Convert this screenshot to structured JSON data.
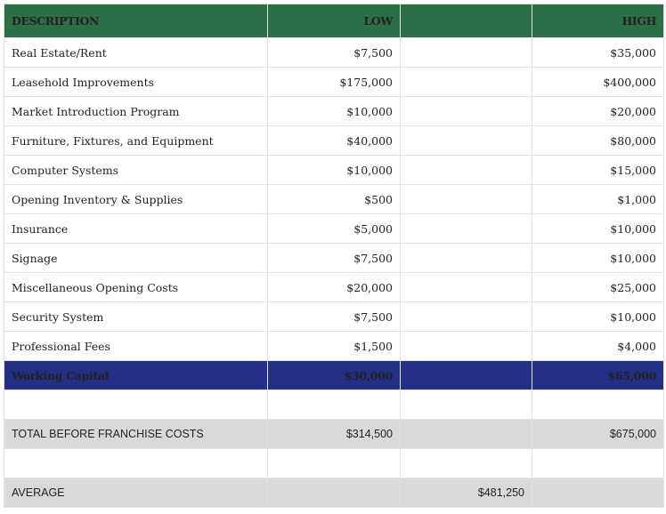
{
  "header": {
    "description": "DESCRIPTION",
    "low": "LOW",
    "middle": "",
    "high": "HIGH"
  },
  "rows": [
    {
      "description": "Real Estate/Rent",
      "low": "$7,500",
      "high": "$35,000"
    },
    {
      "description": "Leasehold Improvements",
      "low": "$175,000",
      "high": "$400,000"
    },
    {
      "description": "Market Introduction Program",
      "low": "$10,000",
      "high": "$20,000"
    },
    {
      "description": "Furniture, Fixtures, and Equipment",
      "low": "$40,000",
      "high": "$80,000"
    },
    {
      "description": "Computer Systems",
      "low": "$10,000",
      "high": "$15,000"
    },
    {
      "description": "Opening Inventory & Supplies",
      "low": "$500",
      "high": "$1,000"
    },
    {
      "description": "Insurance",
      "low": "$5,000",
      "high": "$10,000"
    },
    {
      "description": "Signage",
      "low": "$7,500",
      "high": "$10,000"
    },
    {
      "description": "Miscellaneous Opening Costs",
      "low": "$20,000",
      "high": "$25,000"
    },
    {
      "description": "Security System",
      "low": "$7,500",
      "high": "$10,000"
    },
    {
      "description": "Professional Fees",
      "low": "$1,500",
      "high": "$4,000"
    }
  ],
  "working_capital": {
    "description": "Working Capital",
    "low": "$30,000",
    "high": "$65,000"
  },
  "total": {
    "description": "TOTAL BEFORE FRANCHISE COSTS",
    "low": "$314,500",
    "high": "$675,000"
  },
  "average": {
    "description": "AVERAGE",
    "value": "$481,250"
  },
  "colors": {
    "header_bg": "#2c6e46",
    "working_capital_bg": "#233085",
    "summary_bg": "#d9d9d9"
  }
}
